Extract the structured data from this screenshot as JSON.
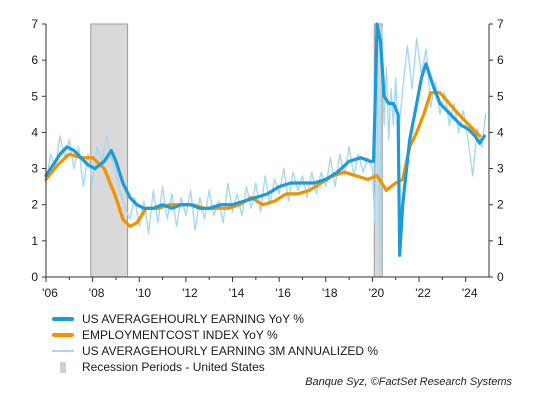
{
  "chart_data": {
    "type": "line",
    "x_ticks": [
      "'06",
      "'08",
      "'10",
      "'12",
      "'14",
      "'16",
      "'18",
      "'20",
      "'22",
      "'24"
    ],
    "ylim": [
      0,
      7
    ],
    "y_ticks": [
      0,
      1,
      2,
      3,
      4,
      5,
      6,
      7
    ],
    "y_tick_labels": [
      "0",
      "1",
      "2",
      "3",
      "4",
      "5",
      "6",
      "7"
    ],
    "right_axis": true,
    "grid": false,
    "recessions": [
      {
        "start": 2007.92,
        "end": 2009.5
      },
      {
        "start": 2020.08,
        "end": 2020.42
      }
    ],
    "series": [
      {
        "name": "US AVERAGEHOURLY EARNING YoY %",
        "color": "#1b9bd8",
        "style": "thick",
        "points": [
          [
            2006.0,
            2.8
          ],
          [
            2006.3,
            3.1
          ],
          [
            2006.6,
            3.4
          ],
          [
            2006.9,
            3.6
          ],
          [
            2007.2,
            3.5
          ],
          [
            2007.5,
            3.3
          ],
          [
            2007.8,
            3.1
          ],
          [
            2008.1,
            3.0
          ],
          [
            2008.5,
            3.2
          ],
          [
            2008.8,
            3.5
          ],
          [
            2009.0,
            3.2
          ],
          [
            2009.3,
            2.6
          ],
          [
            2009.6,
            2.2
          ],
          [
            2009.9,
            2.0
          ],
          [
            2010.2,
            1.9
          ],
          [
            2010.6,
            1.9
          ],
          [
            2011.0,
            2.0
          ],
          [
            2011.4,
            1.9
          ],
          [
            2011.8,
            2.0
          ],
          [
            2012.2,
            2.0
          ],
          [
            2012.6,
            1.9
          ],
          [
            2013.0,
            1.9
          ],
          [
            2013.5,
            2.0
          ],
          [
            2014.0,
            2.0
          ],
          [
            2014.5,
            2.1
          ],
          [
            2015.0,
            2.2
          ],
          [
            2015.5,
            2.3
          ],
          [
            2016.0,
            2.5
          ],
          [
            2016.5,
            2.6
          ],
          [
            2017.0,
            2.6
          ],
          [
            2017.5,
            2.6
          ],
          [
            2018.0,
            2.7
          ],
          [
            2018.5,
            2.9
          ],
          [
            2019.0,
            3.2
          ],
          [
            2019.5,
            3.3
          ],
          [
            2019.9,
            3.2
          ],
          [
            2020.05,
            3.2
          ],
          [
            2020.2,
            7.0
          ],
          [
            2020.35,
            6.5
          ],
          [
            2020.5,
            5.0
          ],
          [
            2020.7,
            4.8
          ],
          [
            2020.9,
            4.8
          ],
          [
            2021.1,
            4.5
          ],
          [
            2021.17,
            0.6
          ],
          [
            2021.3,
            2.0
          ],
          [
            2021.6,
            3.8
          ],
          [
            2021.9,
            4.8
          ],
          [
            2022.1,
            5.5
          ],
          [
            2022.3,
            5.9
          ],
          [
            2022.6,
            5.3
          ],
          [
            2022.9,
            4.8
          ],
          [
            2023.2,
            4.6
          ],
          [
            2023.5,
            4.4
          ],
          [
            2023.8,
            4.2
          ],
          [
            2024.1,
            4.1
          ],
          [
            2024.4,
            3.9
          ],
          [
            2024.6,
            3.7
          ],
          [
            2024.8,
            3.9
          ]
        ]
      },
      {
        "name": "EMPLOYMENTCOST INDEX YoY %",
        "color": "#f39200",
        "style": "thick",
        "points": [
          [
            2006.0,
            2.7
          ],
          [
            2006.5,
            3.1
          ],
          [
            2007.0,
            3.4
          ],
          [
            2007.5,
            3.3
          ],
          [
            2008.0,
            3.3
          ],
          [
            2008.5,
            3.0
          ],
          [
            2009.0,
            2.2
          ],
          [
            2009.3,
            1.6
          ],
          [
            2009.6,
            1.4
          ],
          [
            2009.9,
            1.5
          ],
          [
            2010.3,
            1.9
          ],
          [
            2010.8,
            1.9
          ],
          [
            2011.3,
            2.0
          ],
          [
            2011.8,
            2.0
          ],
          [
            2012.3,
            2.0
          ],
          [
            2012.8,
            1.9
          ],
          [
            2013.3,
            1.9
          ],
          [
            2013.8,
            1.9
          ],
          [
            2014.3,
            2.0
          ],
          [
            2014.8,
            2.2
          ],
          [
            2015.3,
            2.0
          ],
          [
            2015.8,
            2.1
          ],
          [
            2016.3,
            2.3
          ],
          [
            2016.8,
            2.3
          ],
          [
            2017.3,
            2.4
          ],
          [
            2017.8,
            2.6
          ],
          [
            2018.3,
            2.8
          ],
          [
            2018.8,
            2.9
          ],
          [
            2019.3,
            2.8
          ],
          [
            2019.8,
            2.7
          ],
          [
            2020.2,
            2.8
          ],
          [
            2020.6,
            2.4
          ],
          [
            2021.0,
            2.6
          ],
          [
            2021.3,
            2.7
          ],
          [
            2021.6,
            3.6
          ],
          [
            2021.9,
            4.0
          ],
          [
            2022.2,
            4.5
          ],
          [
            2022.5,
            5.1
          ],
          [
            2022.9,
            5.1
          ],
          [
            2023.3,
            4.8
          ],
          [
            2023.7,
            4.5
          ],
          [
            2024.0,
            4.3
          ],
          [
            2024.3,
            4.1
          ],
          [
            2024.6,
            3.9
          ]
        ]
      },
      {
        "name": "US AVERAGEHOURLY EARNING 3M  ANNUALIZED %",
        "color": "#a8d8ee",
        "style": "thin",
        "points": [
          [
            2006.0,
            2.6
          ],
          [
            2006.2,
            3.4
          ],
          [
            2006.4,
            3.0
          ],
          [
            2006.6,
            3.9
          ],
          [
            2006.8,
            3.3
          ],
          [
            2007.0,
            3.8
          ],
          [
            2007.2,
            3.0
          ],
          [
            2007.4,
            3.6
          ],
          [
            2007.6,
            2.5
          ],
          [
            2007.8,
            3.4
          ],
          [
            2008.0,
            2.6
          ],
          [
            2008.2,
            3.6
          ],
          [
            2008.4,
            3.2
          ],
          [
            2008.6,
            3.9
          ],
          [
            2008.8,
            3.3
          ],
          [
            2009.0,
            2.9
          ],
          [
            2009.2,
            2.3
          ],
          [
            2009.4,
            1.9
          ],
          [
            2009.6,
            1.6
          ],
          [
            2009.8,
            2.2
          ],
          [
            2010.0,
            1.4
          ],
          [
            2010.2,
            2.1
          ],
          [
            2010.4,
            1.2
          ],
          [
            2010.6,
            2.4
          ],
          [
            2010.8,
            1.5
          ],
          [
            2011.0,
            2.5
          ],
          [
            2011.2,
            1.6
          ],
          [
            2011.4,
            2.3
          ],
          [
            2011.6,
            1.4
          ],
          [
            2011.8,
            2.2
          ],
          [
            2012.0,
            1.7
          ],
          [
            2012.2,
            2.4
          ],
          [
            2012.4,
            1.3
          ],
          [
            2012.6,
            2.2
          ],
          [
            2012.8,
            1.6
          ],
          [
            2013.0,
            2.4
          ],
          [
            2013.2,
            1.7
          ],
          [
            2013.4,
            2.1
          ],
          [
            2013.6,
            1.5
          ],
          [
            2013.8,
            2.6
          ],
          [
            2014.0,
            1.8
          ],
          [
            2014.2,
            2.3
          ],
          [
            2014.4,
            1.7
          ],
          [
            2014.6,
            2.5
          ],
          [
            2014.8,
            1.9
          ],
          [
            2015.0,
            2.6
          ],
          [
            2015.2,
            1.8
          ],
          [
            2015.4,
            2.8
          ],
          [
            2015.6,
            2.0
          ],
          [
            2015.8,
            2.7
          ],
          [
            2016.0,
            2.3
          ],
          [
            2016.2,
            3.0
          ],
          [
            2016.4,
            2.1
          ],
          [
            2016.6,
            2.9
          ],
          [
            2016.8,
            2.4
          ],
          [
            2017.0,
            2.8
          ],
          [
            2017.2,
            2.2
          ],
          [
            2017.4,
            2.9
          ],
          [
            2017.6,
            2.3
          ],
          [
            2017.8,
            2.9
          ],
          [
            2018.0,
            2.5
          ],
          [
            2018.2,
            3.3
          ],
          [
            2018.4,
            2.5
          ],
          [
            2018.6,
            3.4
          ],
          [
            2018.8,
            2.8
          ],
          [
            2019.0,
            3.6
          ],
          [
            2019.2,
            2.8
          ],
          [
            2019.4,
            3.4
          ],
          [
            2019.6,
            2.9
          ],
          [
            2019.8,
            3.3
          ],
          [
            2020.0,
            3.0
          ],
          [
            2020.1,
            1.5
          ],
          [
            2020.2,
            7.0
          ],
          [
            2020.3,
            0.0
          ],
          [
            2020.4,
            6.9
          ],
          [
            2020.5,
            4.2
          ],
          [
            2020.6,
            5.8
          ],
          [
            2020.7,
            3.8
          ],
          [
            2020.8,
            5.2
          ],
          [
            2020.9,
            4.2
          ],
          [
            2021.0,
            5.5
          ],
          [
            2021.1,
            3.8
          ],
          [
            2021.3,
            5.2
          ],
          [
            2021.5,
            6.4
          ],
          [
            2021.7,
            5.2
          ],
          [
            2021.9,
            6.6
          ],
          [
            2022.1,
            5.6
          ],
          [
            2022.3,
            6.3
          ],
          [
            2022.5,
            4.7
          ],
          [
            2022.7,
            5.4
          ],
          [
            2022.9,
            4.5
          ],
          [
            2023.1,
            5.1
          ],
          [
            2023.3,
            4.2
          ],
          [
            2023.5,
            4.8
          ],
          [
            2023.7,
            4.0
          ],
          [
            2023.9,
            4.6
          ],
          [
            2024.1,
            3.8
          ],
          [
            2024.3,
            2.8
          ],
          [
            2024.5,
            4.1
          ],
          [
            2024.7,
            3.6
          ],
          [
            2024.85,
            4.5
          ]
        ]
      }
    ],
    "legend": [
      {
        "label": "US AVERAGEHOURLY EARNING YoY %",
        "color": "#1b9bd8",
        "kind": "thick"
      },
      {
        "label": "EMPLOYMENTCOST INDEX YoY %",
        "color": "#f39200",
        "kind": "thick"
      },
      {
        "label": "US AVERAGEHOURLY EARNING 3M  ANNUALIZED %",
        "color": "#a8d8ee",
        "kind": "thin"
      },
      {
        "label": "Recession  Periods  - United  States",
        "color": "#cfcfcf",
        "kind": "box"
      }
    ],
    "recession_color": "#d9d9d9",
    "recession_edge_color": "#9a9a9a"
  },
  "source": "Banque Syz, ©FactSet Research Systems"
}
